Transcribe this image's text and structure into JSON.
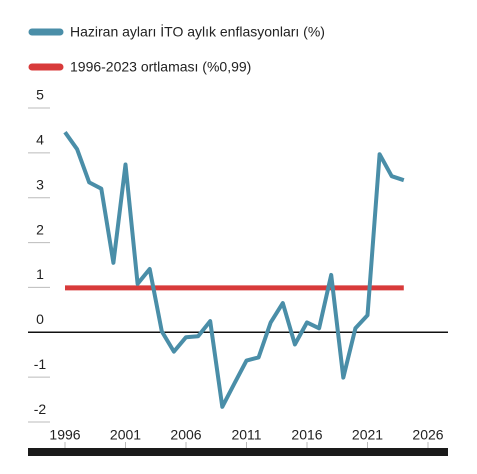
{
  "chart_data": {
    "type": "line",
    "x": [
      1996,
      1997,
      1998,
      1999,
      2000,
      2001,
      2002,
      2003,
      2004,
      2005,
      2006,
      2007,
      2008,
      2009,
      2010,
      2011,
      2012,
      2013,
      2014,
      2015,
      2016,
      2017,
      2018,
      2019,
      2020,
      2021,
      2022,
      2023,
      2024
    ],
    "series": [
      {
        "name": "Haziran ayları İTO aylık enflasyonları (%)",
        "color": "#4a8ea8",
        "values": [
          4.46,
          4.08,
          3.34,
          3.2,
          1.55,
          3.74,
          1.08,
          1.41,
          0.02,
          -0.43,
          -0.11,
          -0.09,
          0.25,
          -1.66,
          -1.14,
          -0.63,
          -0.56,
          0.22,
          0.65,
          -0.27,
          0.22,
          0.09,
          1.28,
          -1.01,
          0.09,
          0.38,
          3.97,
          3.48,
          3.39
        ]
      }
    ],
    "reference_line": {
      "name": "1996-2023 ortlaması (%0,99)",
      "value": 0.99,
      "color": "#d83a3a"
    },
    "xlim": [
      1996,
      2026
    ],
    "xticks": [
      1996,
      2001,
      2006,
      2011,
      2016,
      2021,
      2026
    ],
    "ylim": [
      -2.4,
      5.4
    ],
    "yticks": [
      -2,
      -1,
      0,
      1,
      2,
      3,
      4,
      5
    ]
  }
}
